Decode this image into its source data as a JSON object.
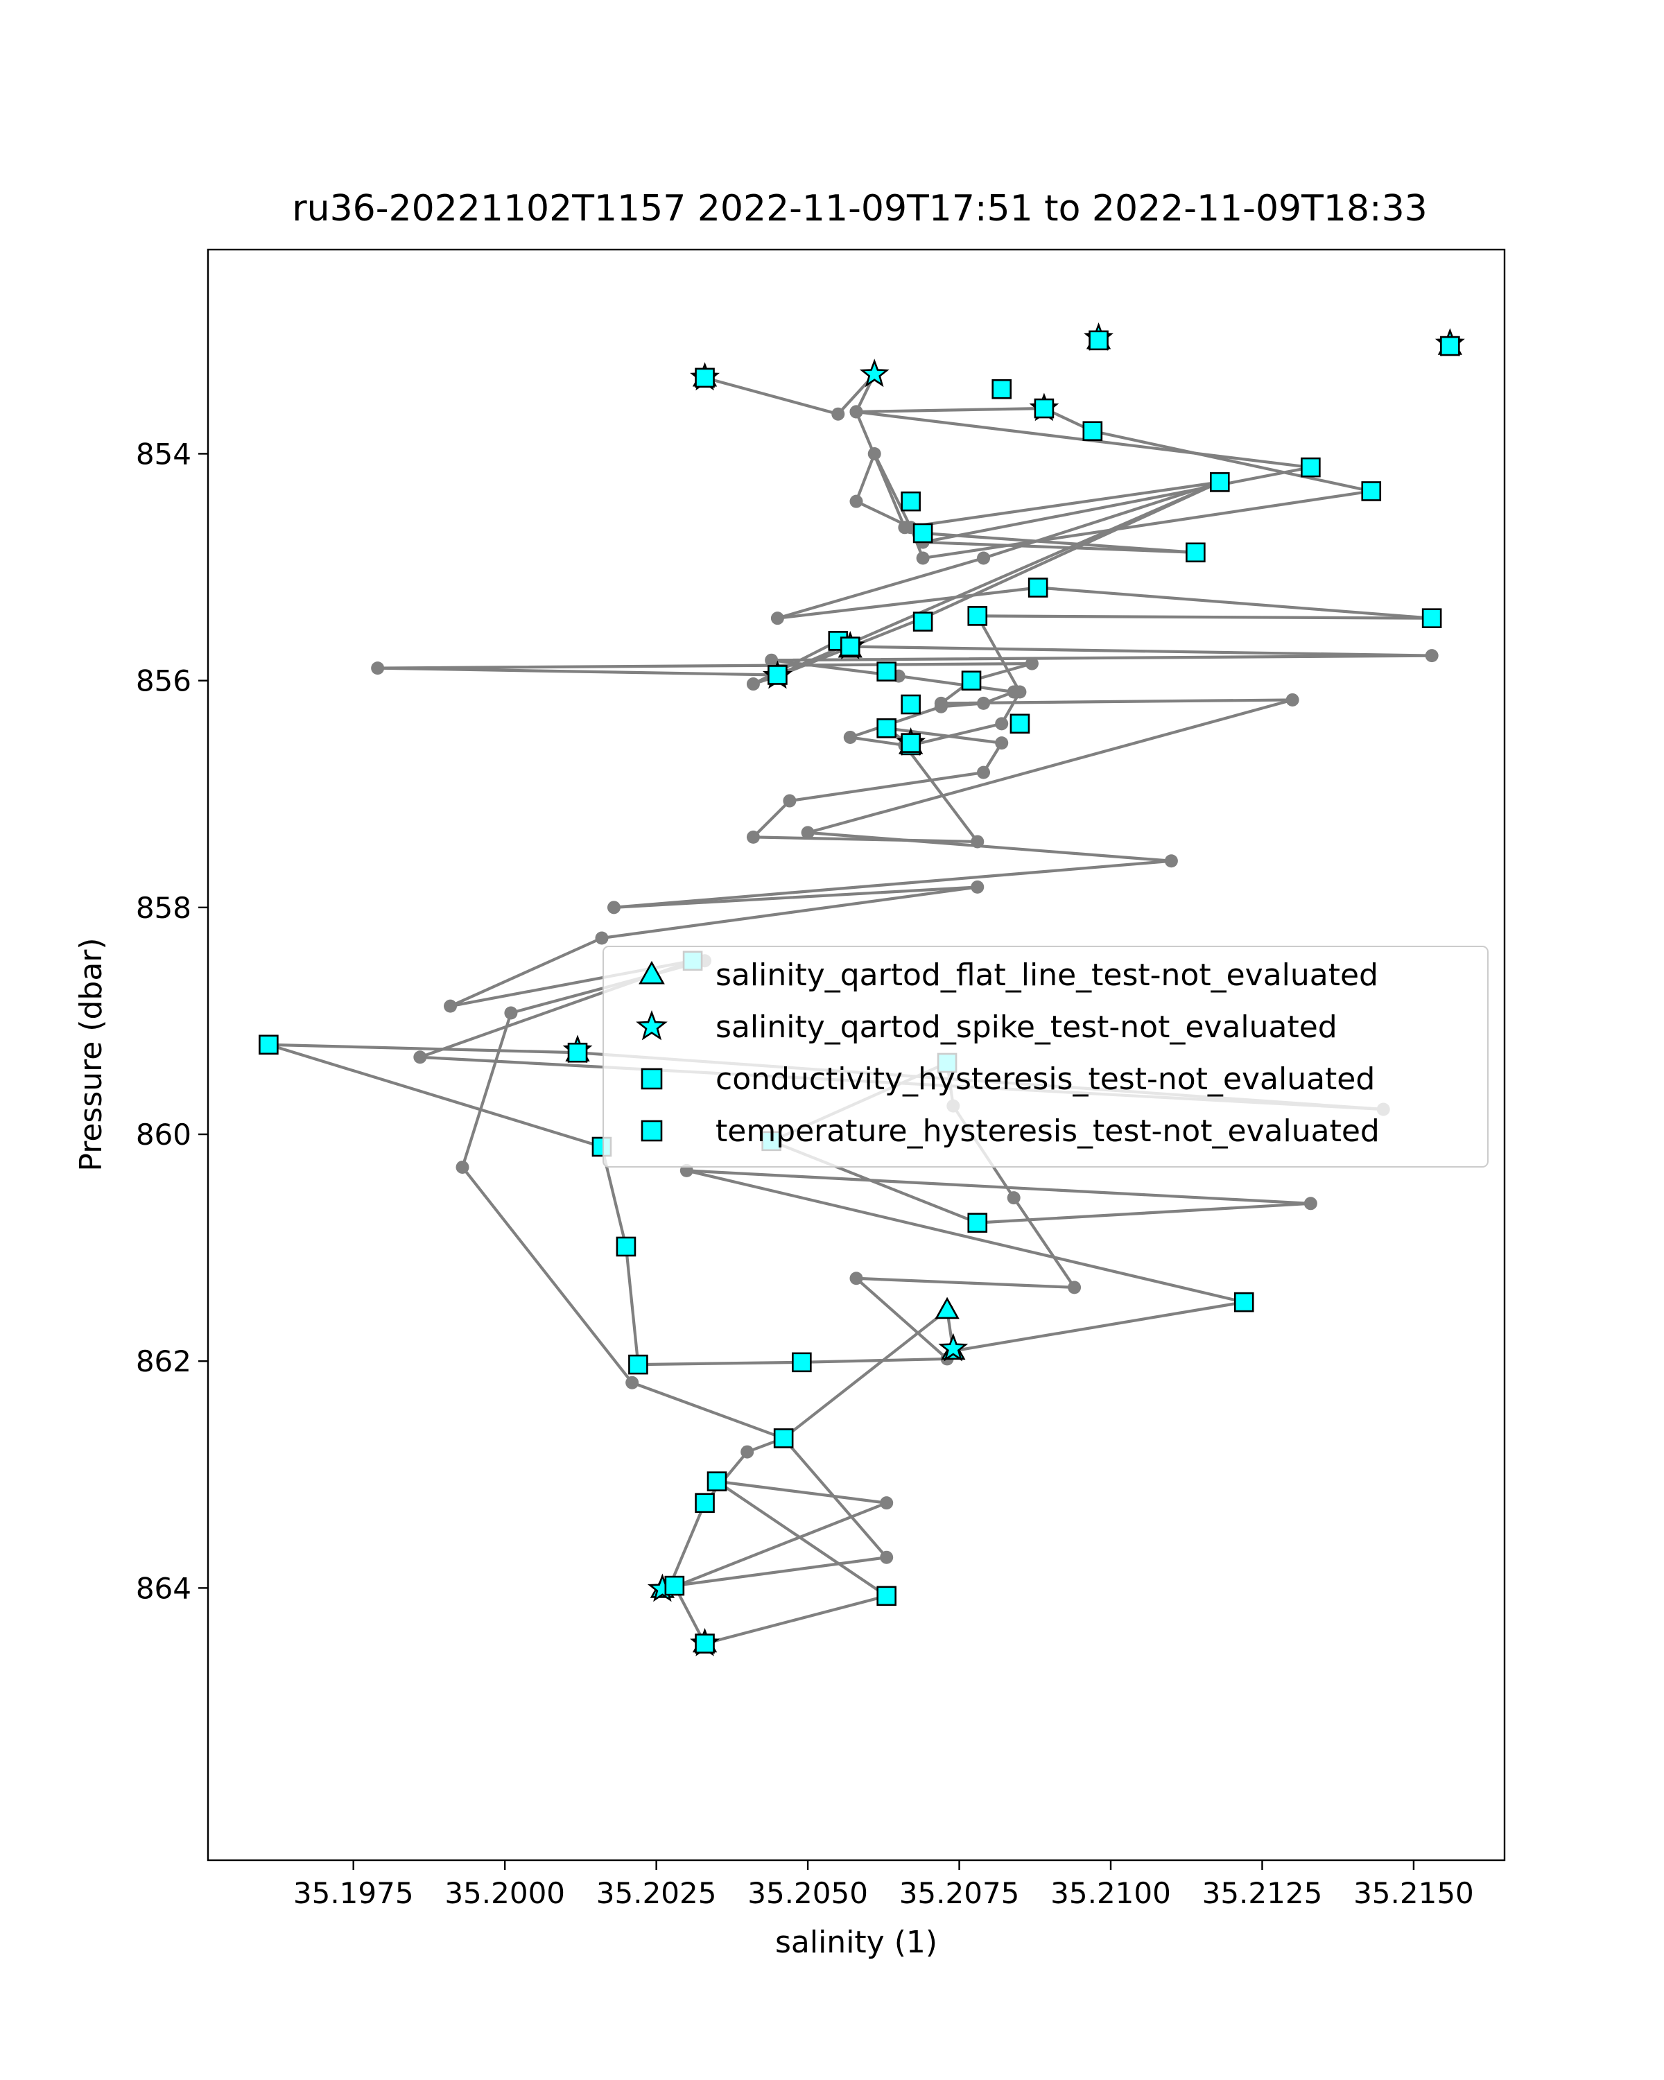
{
  "chart_data": {
    "type": "scatter",
    "title": "ru36-20221102T1157 2022-11-09T17:51 to 2022-11-09T18:33",
    "xlabel": "salinity (1)",
    "ylabel": "Pressure (dbar)",
    "xlim": [
      35.1951,
      35.2165
    ],
    "ylim": [
      866.4,
      852.2
    ],
    "y_inverted": true,
    "grid": false,
    "xticks": [
      35.1975,
      35.2,
      35.2025,
      35.205,
      35.2075,
      35.21,
      35.2125,
      35.215
    ],
    "xtick_labels": [
      "35.1975",
      "35.2000",
      "35.2025",
      "35.2050",
      "35.2075",
      "35.2100",
      "35.2125",
      "35.2150"
    ],
    "yticks": [
      854,
      856,
      858,
      860,
      862,
      864
    ],
    "ytick_labels": [
      "854",
      "856",
      "858",
      "860",
      "862",
      "864"
    ],
    "legend_position": "center-right",
    "line_color": "#808080",
    "marker_color": "#00ffff",
    "profile": [
      [
        35.2033,
        853.33
      ],
      [
        35.2055,
        853.65
      ],
      [
        35.2061,
        853.3
      ],
      [
        35.2058,
        853.63
      ],
      [
        35.2089,
        853.6
      ],
      [
        35.2097,
        853.8
      ],
      [
        35.2143,
        854.33
      ],
      [
        35.2069,
        854.92
      ],
      [
        35.2067,
        854.65
      ],
      [
        35.2061,
        854.0
      ],
      [
        35.2058,
        854.42
      ],
      [
        35.2069,
        854.7
      ],
      [
        35.2114,
        854.87
      ],
      [
        35.2069,
        854.78
      ],
      [
        35.2133,
        854.12
      ],
      [
        35.2058,
        853.63
      ],
      [
        35.2066,
        854.65
      ],
      [
        35.2118,
        854.25
      ],
      [
        35.2079,
        854.92
      ],
      [
        35.2045,
        855.45
      ],
      [
        35.2088,
        855.18
      ],
      [
        35.2153,
        855.45
      ],
      [
        35.2078,
        855.43
      ],
      [
        35.2085,
        856.1
      ],
      [
        35.2082,
        856.38
      ],
      [
        35.2067,
        856.57
      ],
      [
        35.2063,
        856.42
      ],
      [
        35.2082,
        856.55
      ],
      [
        35.2079,
        856.81
      ],
      [
        35.2047,
        857.06
      ],
      [
        35.2041,
        857.38
      ],
      [
        35.2078,
        857.42
      ],
      [
        35.2066,
        856.57
      ],
      [
        35.2057,
        856.5
      ],
      [
        35.2072,
        856.23
      ],
      [
        35.2079,
        856.2
      ],
      [
        35.2084,
        856.1
      ],
      [
        35.2065,
        855.96
      ],
      [
        35.2044,
        855.82
      ],
      [
        35.2153,
        855.78
      ],
      [
        35.2057,
        855.7
      ],
      [
        35.2055,
        855.65
      ],
      [
        35.2041,
        856.03
      ],
      [
        35.2045,
        855.96
      ],
      [
        35.2069,
        855.45
      ],
      [
        35.2118,
        854.25
      ],
      [
        35.2045,
        855.95
      ],
      [
        35.1979,
        855.89
      ],
      [
        35.2087,
        855.85
      ],
      [
        35.2077,
        856.0
      ],
      [
        35.2072,
        856.2
      ],
      [
        35.213,
        856.17
      ],
      [
        35.205,
        857.34
      ],
      [
        35.211,
        857.59
      ],
      [
        35.2018,
        858.0
      ],
      [
        35.2078,
        857.82
      ],
      [
        35.2016,
        858.27
      ],
      [
        35.1991,
        858.87
      ],
      [
        35.2031,
        858.47
      ],
      [
        35.1986,
        859.32
      ],
      [
        35.2145,
        859.78
      ],
      [
        35.2012,
        859.28
      ],
      [
        35.1961,
        859.21
      ],
      [
        35.2016,
        860.11
      ],
      [
        35.202,
        860.99
      ],
      [
        35.2022,
        862.03
      ],
      [
        35.2049,
        862.01
      ],
      [
        35.2073,
        861.98
      ],
      [
        35.2058,
        861.27
      ],
      [
        35.2094,
        861.35
      ],
      [
        35.2084,
        860.56
      ],
      [
        35.2074,
        859.75
      ],
      [
        35.2073,
        859.37
      ],
      [
        35.2044,
        860.06
      ],
      [
        35.2078,
        860.78
      ],
      [
        35.2133,
        860.61
      ],
      [
        35.203,
        860.32
      ],
      [
        35.2122,
        861.48
      ],
      [
        35.2074,
        861.91
      ],
      [
        35.2073,
        861.55
      ],
      [
        35.2046,
        862.68
      ],
      [
        35.204,
        862.8
      ],
      [
        35.2033,
        863.25
      ],
      [
        35.2027,
        864.01
      ],
      [
        35.2063,
        863.25
      ],
      [
        35.2035,
        863.06
      ],
      [
        35.2063,
        864.07
      ],
      [
        35.2033,
        864.49
      ],
      [
        35.2028,
        863.98
      ],
      [
        35.2063,
        863.73
      ],
      [
        35.2046,
        862.68
      ],
      [
        35.2021,
        862.19
      ],
      [
        35.1993,
        860.29
      ],
      [
        35.2001,
        858.93
      ],
      [
        35.2033,
        858.47
      ]
    ],
    "series": [
      {
        "name": "salinity_qartod_flat_line_test-not_evaluated",
        "marker": "triangle",
        "points": [
          [
            35.2033,
            853.33
          ],
          [
            35.2098,
            853.0
          ],
          [
            35.2156,
            853.05
          ],
          [
            35.2057,
            855.72
          ],
          [
            35.2067,
            856.57
          ],
          [
            35.2012,
            859.28
          ],
          [
            35.2073,
            861.55
          ],
          [
            35.2074,
            861.91
          ],
          [
            35.2026,
            864.01
          ],
          [
            35.2033,
            864.49
          ]
        ]
      },
      {
        "name": "salinity_qartod_spike_test-not_evaluated",
        "marker": "star",
        "points": [
          [
            35.2033,
            853.33
          ],
          [
            35.2061,
            853.3
          ],
          [
            35.2098,
            852.98
          ],
          [
            35.2156,
            853.03
          ],
          [
            35.2089,
            853.6
          ],
          [
            35.2057,
            855.7
          ],
          [
            35.2045,
            855.96
          ],
          [
            35.2067,
            856.55
          ],
          [
            35.2012,
            859.26
          ],
          [
            35.2074,
            861.89
          ],
          [
            35.2026,
            864.01
          ],
          [
            35.2033,
            864.49
          ]
        ]
      },
      {
        "name": "conductivity_hysteresis_test-not_evaluated",
        "marker": "square",
        "points": [
          [
            35.2033,
            853.33
          ],
          [
            35.2082,
            853.43
          ],
          [
            35.2089,
            853.6
          ],
          [
            35.2097,
            853.8
          ],
          [
            35.2133,
            854.12
          ],
          [
            35.2118,
            854.25
          ],
          [
            35.2143,
            854.33
          ],
          [
            35.2067,
            854.42
          ],
          [
            35.2069,
            854.7
          ],
          [
            35.2114,
            854.87
          ],
          [
            35.2088,
            855.18
          ],
          [
            35.2153,
            855.45
          ],
          [
            35.2078,
            855.43
          ],
          [
            35.2069,
            855.48
          ],
          [
            35.2055,
            855.65
          ],
          [
            35.2063,
            855.92
          ],
          [
            35.2045,
            855.95
          ],
          [
            35.2077,
            856.0
          ],
          [
            35.2067,
            856.21
          ],
          [
            35.2085,
            856.38
          ],
          [
            35.2063,
            856.42
          ],
          [
            35.2067,
            856.57
          ],
          [
            35.1961,
            859.21
          ],
          [
            35.2012,
            859.28
          ],
          [
            35.2073,
            859.37
          ],
          [
            35.2044,
            860.06
          ],
          [
            35.2016,
            860.11
          ],
          [
            35.2078,
            860.78
          ],
          [
            35.202,
            860.99
          ],
          [
            35.2122,
            861.48
          ],
          [
            35.2022,
            862.03
          ],
          [
            35.2049,
            862.01
          ],
          [
            35.2046,
            862.68
          ],
          [
            35.2035,
            863.06
          ],
          [
            35.2033,
            863.25
          ],
          [
            35.2028,
            863.98
          ],
          [
            35.2063,
            864.07
          ],
          [
            35.2033,
            864.49
          ],
          [
            35.2098,
            853.0
          ],
          [
            35.2156,
            853.05
          ]
        ]
      },
      {
        "name": "temperature_hysteresis_test-not_evaluated",
        "marker": "square",
        "points": [
          [
            35.2031,
            858.47
          ],
          [
            35.2057,
            855.7
          ],
          [
            35.2067,
            856.55
          ]
        ]
      }
    ]
  }
}
